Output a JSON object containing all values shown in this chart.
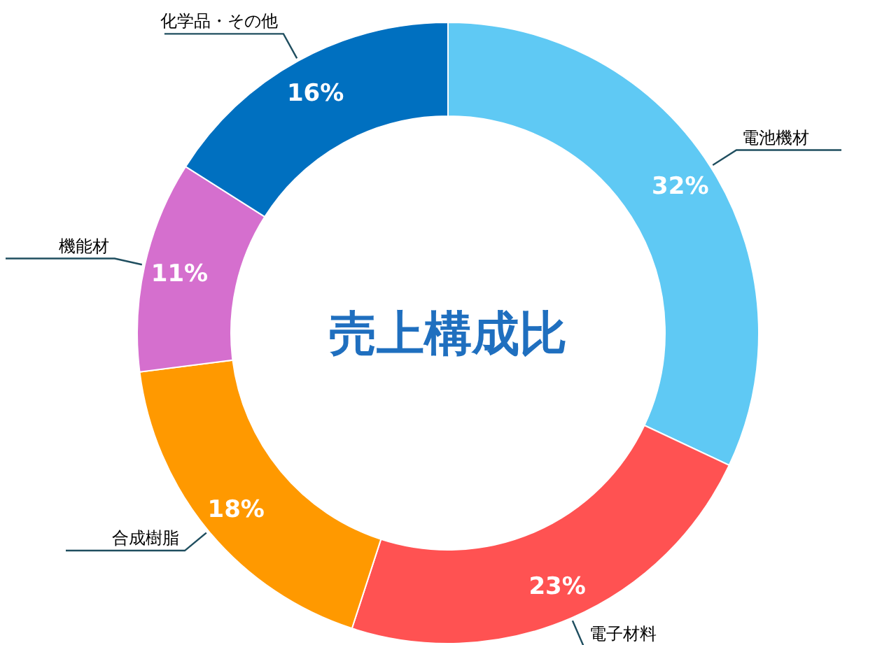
{
  "chart_data": {
    "type": "donut",
    "title": "売上構成比",
    "categories": [
      "電池機材",
      "電子材料",
      "合成樹脂",
      "機能材",
      "化学品・その他"
    ],
    "values": [
      32,
      23,
      18,
      11,
      16
    ],
    "colors": [
      "#5fc9f4",
      "#ff5252",
      "#ff9900",
      "#d56fce",
      "#0070c0"
    ],
    "value_labels": [
      "32%",
      "23%",
      "18%",
      "11%",
      "16%"
    ]
  }
}
